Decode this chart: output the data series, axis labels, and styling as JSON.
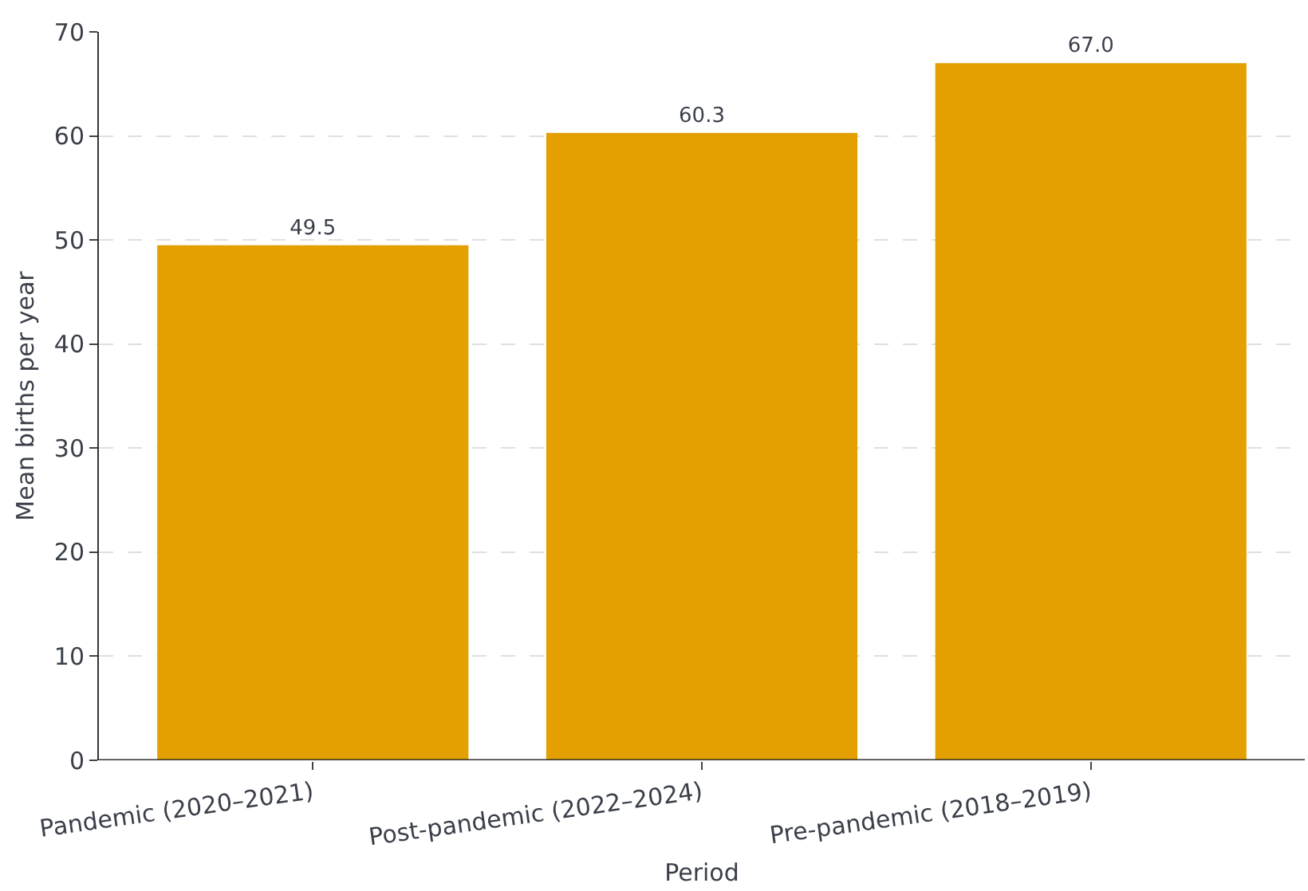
{
  "chart_data": {
    "type": "bar",
    "xlabel": "Period",
    "ylabel": "Mean births per year",
    "categories": [
      "Pandemic (2020–2021)",
      "Post-pandemic (2022–2024)",
      "Pre-pandemic (2018–2019)"
    ],
    "values": [
      49.5,
      60.3,
      67.0
    ],
    "value_labels": [
      "49.5",
      "60.3",
      "67.0"
    ],
    "color": "#e3a000",
    "ylim": [
      0,
      70
    ],
    "yticks": [
      0,
      10,
      20,
      30,
      40,
      50,
      60,
      70
    ],
    "grid": "y"
  }
}
